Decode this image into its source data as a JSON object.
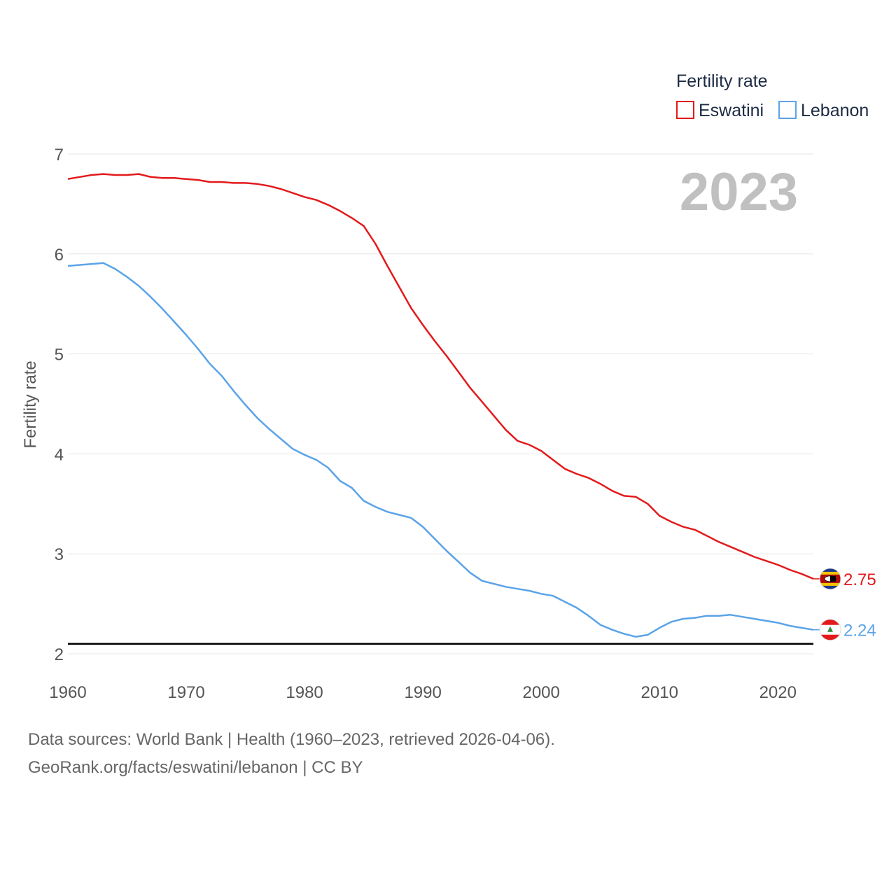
{
  "chart_data": {
    "type": "line",
    "ylabel": "Fertility rate",
    "xlabel": "",
    "xlim": [
      1960,
      2023
    ],
    "ylim": [
      2,
      7
    ],
    "x_ticks": [
      1960,
      1970,
      1980,
      1990,
      2000,
      2010,
      2020
    ],
    "y_ticks": [
      2,
      3,
      4,
      5,
      6,
      7
    ],
    "current_year": "2023",
    "replacement_level": 2.1,
    "legend": {
      "title": "Fertility rate",
      "placement": "top-right"
    },
    "series": [
      {
        "name": "Eswatini",
        "color": "#e31a1c",
        "end_label": "2.75",
        "flag_icon": "eswatini-flag-icon",
        "x": [
          1960,
          1961,
          1962,
          1963,
          1964,
          1965,
          1966,
          1967,
          1968,
          1969,
          1970,
          1971,
          1972,
          1973,
          1974,
          1975,
          1976,
          1977,
          1978,
          1979,
          1980,
          1981,
          1982,
          1983,
          1984,
          1985,
          1986,
          1987,
          1988,
          1989,
          1990,
          1991,
          1992,
          1993,
          1994,
          1995,
          1996,
          1997,
          1998,
          1999,
          2000,
          2001,
          2002,
          2003,
          2004,
          2005,
          2006,
          2007,
          2008,
          2009,
          2010,
          2011,
          2012,
          2013,
          2014,
          2015,
          2016,
          2017,
          2018,
          2019,
          2020,
          2021,
          2022,
          2023
        ],
        "values": [
          6.75,
          6.77,
          6.79,
          6.8,
          6.79,
          6.79,
          6.8,
          6.77,
          6.76,
          6.76,
          6.75,
          6.74,
          6.72,
          6.72,
          6.71,
          6.71,
          6.7,
          6.68,
          6.65,
          6.61,
          6.57,
          6.54,
          6.49,
          6.43,
          6.36,
          6.28,
          6.1,
          5.88,
          5.67,
          5.46,
          5.29,
          5.13,
          4.98,
          4.82,
          4.66,
          4.52,
          4.38,
          4.24,
          4.13,
          4.09,
          4.03,
          3.94,
          3.85,
          3.8,
          3.76,
          3.7,
          3.63,
          3.58,
          3.57,
          3.5,
          3.38,
          3.32,
          3.27,
          3.24,
          3.18,
          3.12,
          3.07,
          3.02,
          2.97,
          2.93,
          2.89,
          2.84,
          2.8,
          2.75
        ]
      },
      {
        "name": "Lebanon",
        "color": "#5ba3e8",
        "end_label": "2.24",
        "flag_icon": "lebanon-flag-icon",
        "x": [
          1960,
          1961,
          1962,
          1963,
          1964,
          1965,
          1966,
          1967,
          1968,
          1969,
          1970,
          1971,
          1972,
          1973,
          1974,
          1975,
          1976,
          1977,
          1978,
          1979,
          1980,
          1981,
          1982,
          1983,
          1984,
          1985,
          1986,
          1987,
          1988,
          1989,
          1990,
          1991,
          1992,
          1993,
          1994,
          1995,
          1996,
          1997,
          1998,
          1999,
          2000,
          2001,
          2002,
          2003,
          2004,
          2005,
          2006,
          2007,
          2008,
          2009,
          2010,
          2011,
          2012,
          2013,
          2014,
          2015,
          2016,
          2017,
          2018,
          2019,
          2020,
          2021,
          2022,
          2023
        ],
        "values": [
          5.88,
          5.89,
          5.9,
          5.91,
          5.85,
          5.77,
          5.68,
          5.57,
          5.45,
          5.32,
          5.19,
          5.05,
          4.9,
          4.78,
          4.63,
          4.49,
          4.36,
          4.25,
          4.15,
          4.05,
          3.99,
          3.94,
          3.86,
          3.73,
          3.66,
          3.53,
          3.47,
          3.42,
          3.39,
          3.36,
          3.27,
          3.15,
          3.03,
          2.92,
          2.81,
          2.73,
          2.7,
          2.67,
          2.65,
          2.63,
          2.6,
          2.58,
          2.52,
          2.46,
          2.38,
          2.29,
          2.24,
          2.2,
          2.17,
          2.19,
          2.26,
          2.32,
          2.35,
          2.36,
          2.38,
          2.38,
          2.39,
          2.37,
          2.35,
          2.33,
          2.31,
          2.28,
          2.26,
          2.24
        ]
      }
    ]
  },
  "footer": {
    "source_line1": "Data sources: World Bank | Health (1960–2023, retrieved 2026-04-06).",
    "source_line2": "GeoRank.org/facts/eswatini/lebanon | CC BY"
  }
}
